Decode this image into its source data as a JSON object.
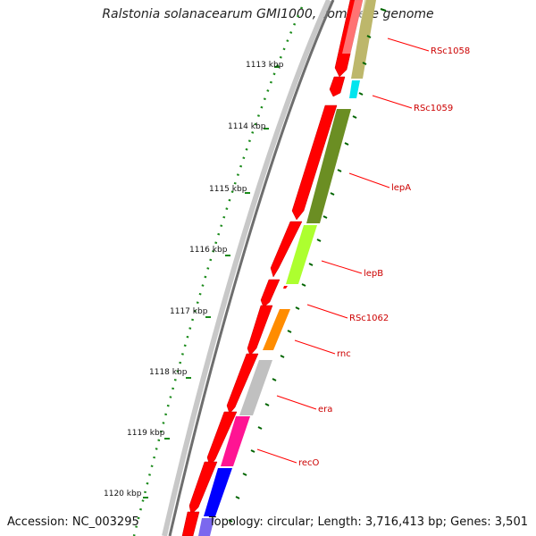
{
  "title": "Ralstonia solanacearum GMI1000, complete genome",
  "accession": "Accession: NC_003295",
  "topology": "Topology: circular; Length: 3,716,413 bp; Genes: 3,501",
  "ruler_labels": [
    "1113 kbp",
    "1114 kbp",
    "1115 kbp",
    "1116 kbp",
    "1117 kbp",
    "1118 kbp",
    "1119 kbp",
    "1120 kbp"
  ],
  "genes": [
    {
      "name": "RSc1058",
      "color": "#bdb76b"
    },
    {
      "name": "RSc1059",
      "color": "#00e5ee"
    },
    {
      "name": "lepA",
      "color": "#6b8e23"
    },
    {
      "name": "lepB",
      "color": "#adff2f"
    },
    {
      "name": "RSc1062",
      "color": "#ff0000"
    },
    {
      "name": "rnc",
      "color": "#ff8c00"
    },
    {
      "name": "era",
      "color": "#c0c0c0"
    },
    {
      "name": "recO",
      "color": "#ff1493"
    }
  ],
  "colors": {
    "cds": "#ff0000",
    "label": "#cc0000",
    "tick": "#006400",
    "backbone": "#8a8a8a",
    "extra_gene": "#0000ff",
    "extra_gene_2": "#7b68ee"
  }
}
